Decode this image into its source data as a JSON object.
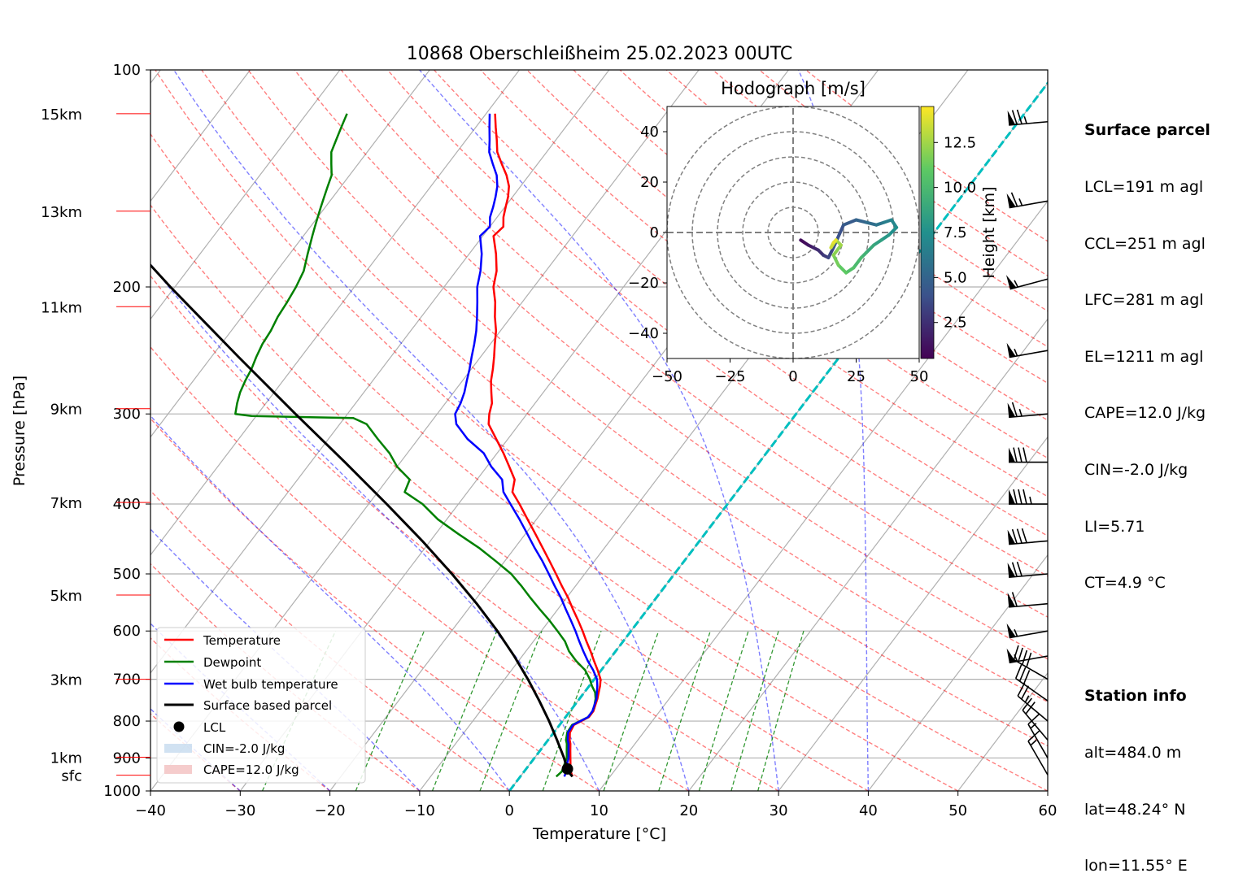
{
  "figure": {
    "title": "10868 Oberschleißheim 25.02.2023 00UTC"
  },
  "chart_data": {
    "type": "line",
    "subtype": "skew-T log-p diagram",
    "xlabel": "Temperature [°C]",
    "ylabel": "Pressure [hPa]",
    "xlim": [
      -40,
      60
    ],
    "ylim": [
      1000,
      100
    ],
    "yscale": "log",
    "x_ticks": [
      "−40",
      "−30",
      "−20",
      "−10",
      "0",
      "10",
      "20",
      "30",
      "40",
      "50",
      "60"
    ],
    "y_ticks": [
      "100",
      "200",
      "300",
      "400",
      "500",
      "600",
      "700",
      "800",
      "900",
      "1000"
    ],
    "height_labels": [
      {
        "label": "15km",
        "p": 115
      },
      {
        "label": "13km",
        "p": 157
      },
      {
        "label": "11km",
        "p": 213
      },
      {
        "label": "9km",
        "p": 295
      },
      {
        "label": "7km",
        "p": 398
      },
      {
        "label": "5km",
        "p": 535
      },
      {
        "label": "3km",
        "p": 700
      },
      {
        "label": "1km",
        "p": 898
      },
      {
        "label": "sfc",
        "p": 951
      }
    ],
    "height_label_color": "#ff0000",
    "series": [
      {
        "name": "Temperature",
        "color": "#ff0000",
        "p": [
          955,
          940,
          920,
          900,
          880,
          860,
          850,
          830,
          810,
          790,
          775,
          760,
          745,
          730,
          715,
          700,
          680,
          660,
          640,
          620,
          600,
          580,
          560,
          540,
          520,
          500,
          480,
          460,
          440,
          420,
          400,
          385,
          370,
          355,
          340,
          325,
          310,
          300,
          290,
          280,
          270,
          260,
          250,
          240,
          230,
          220,
          210,
          200,
          190,
          180,
          170,
          165,
          160,
          155,
          150,
          145,
          140,
          135,
          130,
          125,
          120,
          115
        ],
        "t": [
          5.8,
          5.2,
          4.6,
          4.0,
          3.4,
          2.8,
          2.4,
          1.8,
          1.6,
          2.6,
          2.6,
          2.3,
          2.0,
          1.6,
          1.2,
          0.7,
          -0.4,
          -1.6,
          -2.8,
          -4.1,
          -5.4,
          -6.8,
          -8.3,
          -9.8,
          -11.5,
          -13.2,
          -15.0,
          -16.9,
          -18.9,
          -21.0,
          -23.2,
          -25.0,
          -25.8,
          -27.5,
          -29.3,
          -31.3,
          -33.4,
          -34.2,
          -34.8,
          -35.8,
          -36.8,
          -37.6,
          -38.5,
          -39.5,
          -40.5,
          -41.8,
          -43.0,
          -44.5,
          -45.5,
          -47.0,
          -48.8,
          -48.5,
          -49.3,
          -49.9,
          -50.5,
          -51.3,
          -52.5,
          -54.0,
          -55.5,
          -56.6,
          -57.8,
          -59.0
        ]
      },
      {
        "name": "Dewpoint",
        "color": "#008000",
        "p": [
          955,
          940,
          920,
          900,
          880,
          860,
          850,
          830,
          810,
          790,
          775,
          760,
          745,
          730,
          715,
          700,
          680,
          660,
          640,
          620,
          600,
          580,
          560,
          540,
          520,
          500,
          480,
          460,
          440,
          420,
          400,
          385,
          370,
          355,
          340,
          325,
          310,
          304,
          302,
          300,
          290,
          280,
          270,
          260,
          250,
          240,
          230,
          220,
          210,
          200,
          190,
          180,
          170,
          165,
          160,
          155,
          150,
          145,
          140,
          135,
          130,
          125,
          120,
          115
        ],
        "t": [
          4.0,
          4.2,
          3.9,
          3.6,
          3.0,
          2.4,
          2.0,
          1.5,
          1.4,
          2.5,
          2.5,
          2.2,
          1.8,
          1.2,
          0.3,
          -0.5,
          -1.8,
          -3.6,
          -5.2,
          -6.5,
          -8.2,
          -10.0,
          -12.0,
          -14.0,
          -16.0,
          -18.2,
          -21.0,
          -24.0,
          -27.5,
          -31.0,
          -34.0,
          -37.0,
          -37.5,
          -40.0,
          -42.0,
          -44.5,
          -47.0,
          -49.0,
          -60.5,
          -62.5,
          -63.2,
          -63.8,
          -64.2,
          -64.5,
          -65.0,
          -65.4,
          -65.6,
          -66.0,
          -66.2,
          -66.5,
          -67.0,
          -68.0,
          -69.0,
          -69.5,
          -70.0,
          -70.5,
          -71.0,
          -71.5,
          -72.0,
          -73.0,
          -74.0,
          -74.5,
          -75.0,
          -75.5
        ]
      },
      {
        "name": "Wet bulb temperature",
        "color": "#0000ff",
        "p": [
          955,
          940,
          920,
          900,
          880,
          860,
          850,
          830,
          810,
          790,
          775,
          760,
          745,
          730,
          715,
          700,
          680,
          660,
          640,
          620,
          600,
          580,
          560,
          540,
          520,
          500,
          480,
          460,
          440,
          420,
          400,
          385,
          370,
          355,
          340,
          325,
          310,
          300,
          290,
          280,
          270,
          260,
          250,
          240,
          230,
          220,
          210,
          200,
          190,
          180,
          170,
          165,
          160,
          155,
          150,
          145,
          140,
          135,
          130,
          125,
          120,
          115
        ],
        "t": [
          4.9,
          4.7,
          4.2,
          3.8,
          3.2,
          2.6,
          2.2,
          1.6,
          1.5,
          2.5,
          2.5,
          2.2,
          1.9,
          1.4,
          0.9,
          0.3,
          -0.9,
          -2.3,
          -3.6,
          -4.9,
          -6.2,
          -7.6,
          -9.1,
          -10.6,
          -12.3,
          -14.0,
          -15.8,
          -17.8,
          -19.8,
          -21.9,
          -24.2,
          -26.0,
          -27.2,
          -29.5,
          -31.5,
          -34.5,
          -37.0,
          -38.0,
          -38.3,
          -38.8,
          -39.5,
          -40.2,
          -41.0,
          -41.8,
          -42.7,
          -43.8,
          -45.0,
          -46.3,
          -47.3,
          -48.6,
          -50.3,
          -50.0,
          -50.8,
          -51.3,
          -51.9,
          -52.6,
          -53.6,
          -55.0,
          -56.4,
          -57.4,
          -58.5,
          -59.6
        ]
      },
      {
        "name": "Surface based parcel",
        "color": "#000000",
        "p": [
          955,
          940,
          925,
          900,
          850,
          800,
          750,
          700,
          650,
          600,
          550,
          500,
          450,
          400,
          350,
          300,
          250,
          200,
          170
        ],
        "t": [
          5.8,
          4.9,
          4.3,
          3.3,
          1.0,
          -1.5,
          -4.3,
          -7.4,
          -10.9,
          -14.9,
          -19.5,
          -24.8,
          -30.9,
          -38.0,
          -46.2,
          -55.8,
          -67.0,
          -80.5,
          -90.0
        ]
      }
    ],
    "lcl": {
      "name": "LCL",
      "p": 932,
      "t": 4.6
    },
    "legend": {
      "placement": "lower-left",
      "entries": [
        "Temperature",
        "Dewpoint",
        "Wet bulb temperature",
        "Surface based parcel",
        "LCL",
        "CIN=-2.0 J/kg",
        "CAPE=12.0 J/kg"
      ]
    },
    "zero_isotherm_color": "#00bfbf",
    "grid": true,
    "hodograph": {
      "title": "Hodograph [m/s]",
      "xlim": [
        -50,
        50
      ],
      "ylim": [
        -50,
        50
      ],
      "x_ticks": [
        "−50",
        "−25",
        "0",
        "25",
        "50"
      ],
      "y_ticks": [
        "−40",
        "−20",
        "0",
        "20",
        "40"
      ],
      "colorbar_label": "Height [km]",
      "colorbar_ticks": [
        "2.5",
        "5.0",
        "7.5",
        "10.0",
        "12.5"
      ],
      "rings": [
        10,
        20,
        30,
        40,
        50
      ],
      "trace_km": [
        0.5,
        1,
        1.5,
        2,
        2.5,
        3,
        3.5,
        4,
        4.5,
        5,
        5.5,
        6,
        6.5,
        7,
        7.5,
        8,
        8.5,
        9,
        9.5,
        10,
        10.5,
        11,
        11.5,
        12,
        12.5,
        13,
        13.5,
        14
      ],
      "trace_u": [
        3,
        6,
        8,
        10,
        12,
        14,
        16,
        20,
        25,
        29,
        33,
        36,
        39,
        41,
        38,
        35,
        32,
        29,
        27,
        24,
        21,
        18,
        16,
        19,
        17,
        15,
        16,
        17
      ],
      "trace_v": [
        -3,
        -5,
        -6,
        -7,
        -9,
        -10,
        -6,
        3,
        5,
        4,
        3,
        4,
        5,
        2,
        -1,
        -3,
        -5,
        -8,
        -10,
        -14,
        -16,
        -13,
        -9,
        -5,
        -3,
        -6,
        -4,
        -3
      ]
    },
    "wind_barbs": [
      {
        "p": 118,
        "dir": 265,
        "speed_kt": 75
      },
      {
        "p": 152,
        "dir": 260,
        "speed_kt": 65
      },
      {
        "p": 195,
        "dir": 255,
        "speed_kt": 55
      },
      {
        "p": 245,
        "dir": 260,
        "speed_kt": 55
      },
      {
        "p": 300,
        "dir": 265,
        "speed_kt": 65
      },
      {
        "p": 350,
        "dir": 270,
        "speed_kt": 80
      },
      {
        "p": 400,
        "dir": 270,
        "speed_kt": 85
      },
      {
        "p": 450,
        "dir": 265,
        "speed_kt": 80
      },
      {
        "p": 500,
        "dir": 265,
        "speed_kt": 70
      },
      {
        "p": 550,
        "dir": 265,
        "speed_kt": 60
      },
      {
        "p": 600,
        "dir": 260,
        "speed_kt": 55
      },
      {
        "p": 650,
        "dir": 260,
        "speed_kt": 55
      },
      {
        "p": 700,
        "dir": 300,
        "speed_kt": 40
      },
      {
        "p": 750,
        "dir": 305,
        "speed_kt": 30
      },
      {
        "p": 800,
        "dir": 310,
        "speed_kt": 25
      },
      {
        "p": 850,
        "dir": 320,
        "speed_kt": 20
      },
      {
        "p": 900,
        "dir": 330,
        "speed_kt": 15
      },
      {
        "p": 950,
        "dir": 330,
        "speed_kt": 15
      }
    ]
  },
  "info": {
    "surface_title": "Surface parcel",
    "surface_lines": [
      "LCL=191 m agl",
      "CCL=251 m agl",
      "LFC=281 m agl",
      "EL=1211 m agl",
      "CAPE=12.0 J/kg",
      "CIN=-2.0 J/kg",
      "LI=5.71",
      "CT=4.9 °C"
    ],
    "station_title": "Station info",
    "station_lines": [
      "alt=484.0 m",
      "lat=48.24° N",
      "lon=11.55° E"
    ]
  }
}
